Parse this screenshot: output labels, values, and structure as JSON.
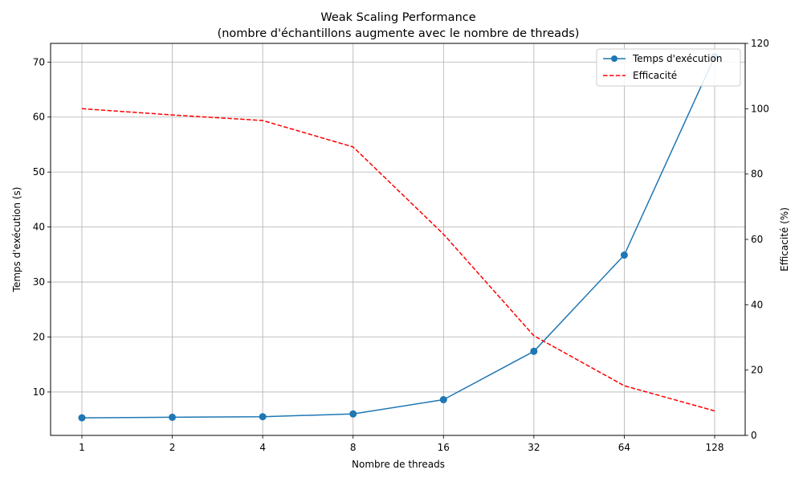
{
  "chart_data": {
    "type": "line",
    "title": "Weak Scaling Performance",
    "subtitle": "(nombre d'échantillons augmente avec le nombre de threads)",
    "xlabel": "Nombre de threads",
    "ylabel_left": "Temps d'exécution (s)",
    "ylabel_right": "Efficacité (%)",
    "x_scale": "log2",
    "categories": [
      "1",
      "2",
      "4",
      "8",
      "16",
      "32",
      "64",
      "128"
    ],
    "x": [
      1,
      2,
      4,
      8,
      16,
      32,
      64,
      128
    ],
    "ylim_left": [
      2.1,
      73.4
    ],
    "ylim_right": [
      0,
      120
    ],
    "yticks_left": [
      10,
      20,
      30,
      40,
      50,
      60,
      70
    ],
    "yticks_right": [
      0,
      20,
      40,
      60,
      80,
      100,
      120
    ],
    "grid": true,
    "legend_position": "top-right",
    "series": [
      {
        "name": "Temps d'exécution",
        "axis": "left",
        "style": "solid line with circle markers",
        "color": "#1f77b4",
        "values": [
          5.3,
          5.4,
          5.5,
          6.0,
          8.6,
          17.4,
          34.9,
          71.0
        ]
      },
      {
        "name": "Efficacité",
        "axis": "right",
        "style": "dashed line",
        "color": "#ff0000",
        "values": [
          100,
          98.1,
          96.4,
          88.3,
          61.6,
          30.5,
          15.2,
          7.5
        ]
      }
    ]
  }
}
